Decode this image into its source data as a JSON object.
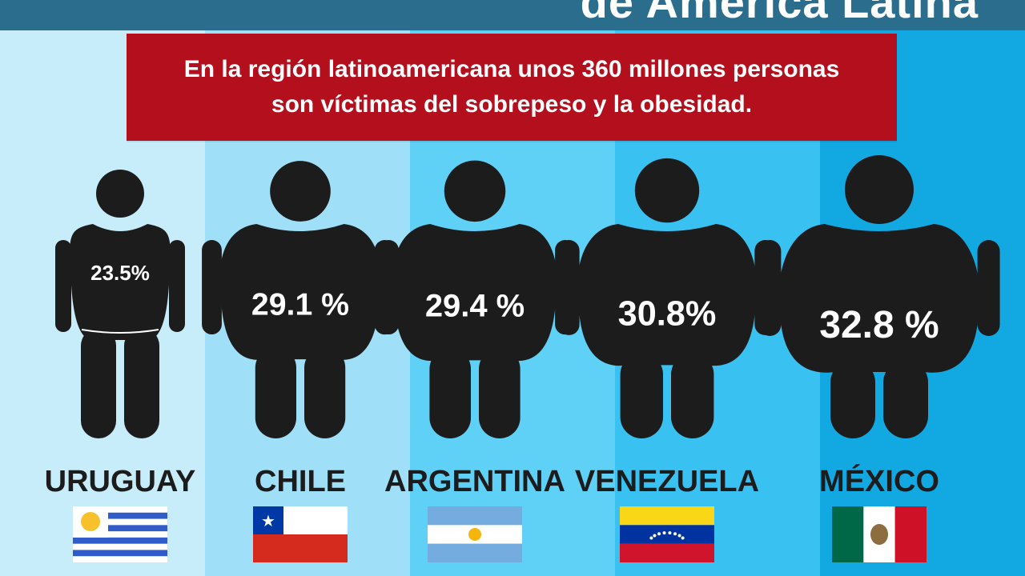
{
  "header": {
    "title": "de América Latina"
  },
  "banner": {
    "line1": "En la región latinoamericana unos 360 millones personas",
    "line2": "son víctimas del sobrepeso y la obesidad."
  },
  "colors": {
    "banner": "#b30f1d",
    "figure": "#1c1c1c",
    "topbar": "#2b6d8d",
    "stripes": [
      "#c7edfb",
      "#9fe0f8",
      "#5fd0f6",
      "#39c2f1",
      "#12a9e3"
    ]
  },
  "chart_data": {
    "type": "pictogram",
    "categories": [
      "URUGUAY",
      "CHILE",
      "ARGENTINA",
      "VENEZUELA",
      "MÉXICO"
    ],
    "values": [
      23.5,
      29.1,
      29.4,
      30.8,
      32.8
    ],
    "value_labels": [
      "23.5%",
      "29.1 %",
      "29.4 %",
      "30.8%",
      "32.8 %"
    ],
    "flags": [
      "uruguay-flag",
      "chile-flag",
      "argentina-flag",
      "venezuela-flag",
      "mexico-flag"
    ]
  }
}
